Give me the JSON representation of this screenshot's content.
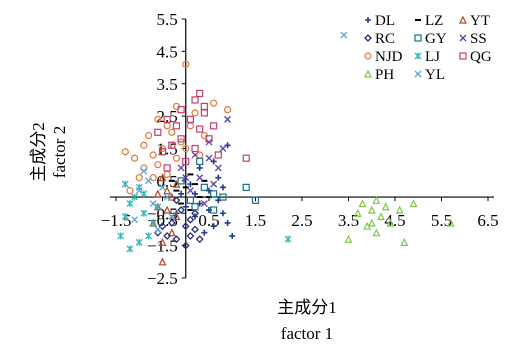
{
  "chart_data": {
    "type": "scatter",
    "xlabel": [
      "主成分1",
      "factor 1"
    ],
    "ylabel": [
      "主成分2",
      "factor 2"
    ],
    "xlim": [
      -1.5,
      6.5
    ],
    "ylim": [
      -2.5,
      5.5
    ],
    "x_ticks": [
      "−1.5",
      "−0.5",
      "0.5",
      "1.5",
      "2.5",
      "3.5",
      "4.5",
      "5.5",
      "6.5"
    ],
    "y_ticks": [
      "5.5",
      "4.5",
      "3.5",
      "2.5",
      "1.5",
      "0.5",
      "−0.5",
      "−1.5",
      "−2.5"
    ],
    "x_tick_values": [
      -1.5,
      -0.5,
      0.5,
      1.5,
      2.5,
      3.5,
      4.5,
      5.5,
      6.5
    ],
    "y_tick_values": [
      5.5,
      4.5,
      3.5,
      2.5,
      1.5,
      0.5,
      -0.5,
      -1.5,
      -2.5
    ],
    "legend_position": "top-right",
    "grid": false,
    "series": [
      {
        "name": "DL",
        "marker": "plus",
        "color": "#1f3d8a",
        "points": [
          [
            0.9,
            1.6
          ],
          [
            0.7,
            0.6
          ],
          [
            0.8,
            -0.5
          ],
          [
            1.0,
            -1.2
          ],
          [
            0.9,
            -0.8
          ],
          [
            0.3,
            -0.2
          ],
          [
            0.5,
            0.2
          ],
          [
            0.6,
            -0.9
          ],
          [
            0.2,
            -0.6
          ],
          [
            0.1,
            0.4
          ],
          [
            0.4,
            -1.1
          ],
          [
            0.8,
            0.3
          ],
          [
            0.0,
            -0.3
          ],
          [
            -0.1,
            0.1
          ],
          [
            0.3,
            0.9
          ],
          [
            0.6,
            1.1
          ],
          [
            0.5,
            -0.4
          ],
          [
            0.2,
            0.1
          ],
          [
            -0.2,
            -0.5
          ],
          [
            0.7,
            -0.1
          ]
        ]
      },
      {
        "name": "LZ",
        "marker": "dash",
        "color": "#000000",
        "points": [
          [
            0.1,
            0.7
          ],
          [
            0.2,
            0.4
          ],
          [
            -0.1,
            -0.2
          ],
          [
            0.3,
            0.0
          ],
          [
            0.0,
            0.3
          ],
          [
            -0.2,
            0.2
          ],
          [
            0.4,
            0.5
          ],
          [
            0.1,
            -0.4
          ],
          [
            0.5,
            0.0
          ],
          [
            -0.3,
            0.5
          ]
        ]
      },
      {
        "name": "YT",
        "marker": "triangle",
        "color": "#b5482a",
        "points": [
          [
            -0.4,
            0.2
          ],
          [
            -0.6,
            -0.3
          ],
          [
            -0.5,
            0.6
          ],
          [
            -0.3,
            -1.1
          ],
          [
            -0.5,
            -2.0
          ],
          [
            -0.2,
            -0.6
          ],
          [
            -0.6,
            0.1
          ],
          [
            -0.4,
            -0.4
          ],
          [
            -0.2,
            0.4
          ],
          [
            -0.7,
            -0.8
          ],
          [
            -0.3,
            0.0
          ],
          [
            -0.5,
            -1.4
          ]
        ]
      },
      {
        "name": "RC",
        "marker": "diamond",
        "color": "#2b2a7a",
        "points": [
          [
            -0.2,
            -1.3
          ],
          [
            0.0,
            -0.9
          ],
          [
            -0.4,
            -1.2
          ],
          [
            0.2,
            -1.0
          ],
          [
            -0.1,
            -0.4
          ],
          [
            0.1,
            -0.7
          ],
          [
            -0.3,
            -0.8
          ],
          [
            0.3,
            -1.3
          ],
          [
            -0.5,
            -0.9
          ],
          [
            0.0,
            -1.5
          ],
          [
            -0.2,
            -0.1
          ],
          [
            0.2,
            -0.5
          ],
          [
            -0.6,
            -1.1
          ],
          [
            0.1,
            -1.2
          ]
        ]
      },
      {
        "name": "GY",
        "marker": "square-open",
        "color": "#1a6e8c",
        "points": [
          [
            1.3,
            0.3
          ],
          [
            1.5,
            -0.1
          ],
          [
            0.6,
            0.1
          ],
          [
            0.3,
            1.1
          ],
          [
            0.6,
            -0.4
          ],
          [
            0.1,
            -0.1
          ],
          [
            -0.1,
            0.5
          ],
          [
            0.4,
            0.3
          ],
          [
            0.8,
            0.0
          ],
          [
            0.2,
            -0.3
          ]
        ]
      },
      {
        "name": "SS",
        "marker": "x",
        "color": "#5a3fb0",
        "points": [
          [
            0.9,
            2.4
          ],
          [
            0.5,
            1.7
          ],
          [
            0.3,
            0.6
          ],
          [
            0.7,
            0.9
          ],
          [
            0.2,
            1.3
          ],
          [
            0.6,
            0.4
          ],
          [
            -0.1,
            0.9
          ],
          [
            0.4,
            -0.2
          ],
          [
            0.1,
            0.2
          ],
          [
            0.5,
            1.2
          ],
          [
            0.8,
            1.5
          ],
          [
            0.0,
            0.6
          ]
        ]
      },
      {
        "name": "NJD",
        "marker": "circle-open",
        "color": "#e07a3a",
        "points": [
          [
            -1.3,
            1.4
          ],
          [
            -1.1,
            1.2
          ],
          [
            -0.9,
            0.9
          ],
          [
            -0.7,
            0.6
          ],
          [
            -0.5,
            1.5
          ],
          [
            -0.3,
            2.0
          ],
          [
            -0.1,
            1.7
          ],
          [
            0.1,
            2.2
          ],
          [
            -0.2,
            2.8
          ],
          [
            0.0,
            4.1
          ],
          [
            0.2,
            2.6
          ],
          [
            0.4,
            1.9
          ],
          [
            0.6,
            2.9
          ],
          [
            0.9,
            2.7
          ],
          [
            -0.8,
            1.9
          ],
          [
            -0.6,
            1.0
          ],
          [
            -0.4,
            0.7
          ],
          [
            -0.2,
            1.2
          ],
          [
            0.0,
            1.5
          ],
          [
            -1.0,
            0.6
          ],
          [
            -1.2,
            0.2
          ],
          [
            -0.6,
            2.4
          ],
          [
            0.3,
            1.3
          ],
          [
            -0.9,
            1.6
          ],
          [
            -0.4,
            2.2
          ],
          [
            -0.7,
            1.3
          ]
        ]
      },
      {
        "name": "LJ",
        "marker": "star",
        "color": "#36b7b7",
        "points": [
          [
            -1.3,
            -0.6
          ],
          [
            -1.2,
            -1.6
          ],
          [
            -1.1,
            0.0
          ],
          [
            -1.0,
            -1.4
          ],
          [
            -0.9,
            -0.5
          ],
          [
            -0.7,
            -0.8
          ],
          [
            -1.3,
            0.4
          ],
          [
            -0.8,
            -1.2
          ],
          [
            2.2,
            -1.3
          ],
          [
            -1.2,
            -0.2
          ],
          [
            -1.0,
            0.3
          ],
          [
            -0.6,
            -0.3
          ],
          [
            -1.4,
            -1.2
          ],
          [
            -0.9,
            0.1
          ]
        ]
      },
      {
        "name": "QG",
        "marker": "square-open",
        "color": "#c0406c",
        "points": [
          [
            -0.6,
            2.0
          ],
          [
            -0.4,
            2.4
          ],
          [
            -0.1,
            1.8
          ],
          [
            0.2,
            3.0
          ],
          [
            0.4,
            2.6
          ],
          [
            0.3,
            2.1
          ],
          [
            0.1,
            2.4
          ],
          [
            -0.3,
            1.6
          ],
          [
            0.5,
            1.8
          ],
          [
            0.7,
            1.3
          ],
          [
            1.3,
            1.2
          ],
          [
            0.0,
            1.1
          ],
          [
            -0.2,
            2.2
          ],
          [
            -0.5,
            1.4
          ],
          [
            0.2,
            1.5
          ],
          [
            0.4,
            2.8
          ],
          [
            -0.1,
            2.7
          ],
          [
            0.6,
            2.2
          ],
          [
            0.3,
            3.2
          ],
          [
            -0.4,
            0.9
          ]
        ]
      },
      {
        "name": "PH",
        "marker": "triangle-open",
        "color": "#7cc84a",
        "points": [
          [
            3.5,
            -1.3
          ],
          [
            3.7,
            -0.5
          ],
          [
            3.9,
            -0.9
          ],
          [
            4.0,
            -0.4
          ],
          [
            4.1,
            -0.1
          ],
          [
            4.2,
            -0.6
          ],
          [
            4.3,
            -0.3
          ],
          [
            4.4,
            -0.8
          ],
          [
            4.6,
            -0.4
          ],
          [
            4.7,
            -1.4
          ],
          [
            4.9,
            -0.2
          ],
          [
            4.1,
            -1.1
          ],
          [
            5.7,
            -0.8
          ],
          [
            4.0,
            -0.8
          ],
          [
            3.8,
            -0.2
          ]
        ]
      },
      {
        "name": "YL",
        "marker": "x",
        "color": "#5ba3d9",
        "points": [
          [
            3.4,
            5.0
          ],
          [
            -0.9,
            0.8
          ],
          [
            -0.7,
            -0.2
          ],
          [
            -0.5,
            0.3
          ],
          [
            -1.1,
            -0.7
          ],
          [
            -0.3,
            -0.6
          ],
          [
            -0.8,
            0.5
          ],
          [
            -0.6,
            -1.0
          ],
          [
            -1.0,
            0.2
          ],
          [
            -0.4,
            0.0
          ]
        ]
      }
    ]
  }
}
